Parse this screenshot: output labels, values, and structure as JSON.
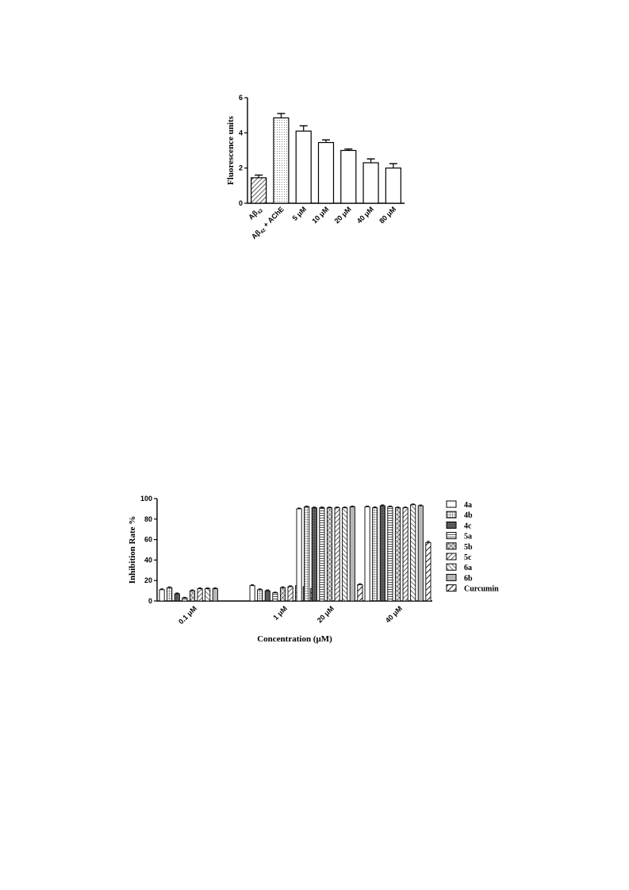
{
  "chart_data": [
    {
      "type": "bar",
      "title": "",
      "ylabel": "Fluorescence units",
      "xlabel": "",
      "ylim": [
        0,
        6
      ],
      "yticks": [
        "0",
        "2",
        "4",
        "6"
      ],
      "categories": [
        "Aβ42",
        "Aβ42 + AChE",
        "5 μM",
        "10 μM",
        "20 μM",
        "40 μM",
        "80 μM"
      ],
      "category_parts": [
        {
          "base": "Aβ",
          "sub": "42",
          "rest": ""
        },
        {
          "base": "Aβ",
          "sub": "42",
          "rest": " + AChE"
        },
        {
          "base": "5 μM",
          "sub": "",
          "rest": ""
        },
        {
          "base": "10 μM",
          "sub": "",
          "rest": ""
        },
        {
          "base": "20 μM",
          "sub": "",
          "rest": ""
        },
        {
          "base": "40 μM",
          "sub": "",
          "rest": ""
        },
        {
          "base": "80 μM",
          "sub": "",
          "rest": ""
        }
      ],
      "values": [
        1.45,
        4.85,
        4.1,
        3.45,
        3.0,
        2.3,
        2.0
      ],
      "errors": [
        0.15,
        0.25,
        0.3,
        0.15,
        0.08,
        0.22,
        0.25
      ],
      "patterns": [
        "diagonal",
        "dots",
        "none",
        "none",
        "none",
        "none",
        "none"
      ],
      "grid": false
    },
    {
      "type": "bar",
      "title": "",
      "ylabel": "Inhibition Rate %",
      "xlabel": "Concentration (μM)",
      "ylim": [
        0,
        100
      ],
      "yticks": [
        "0",
        "20",
        "40",
        "60",
        "80",
        "100"
      ],
      "categories": [
        "0.1 μM",
        "1 μM",
        "20 μM",
        "40 μM"
      ],
      "legend_position": "right",
      "series": [
        {
          "name": "4a",
          "pattern": "none",
          "values": [
            11,
            15,
            90,
            92
          ],
          "errors": [
            0.8,
            0.8,
            0.7,
            0.7
          ]
        },
        {
          "name": "4b",
          "pattern": "grid",
          "values": [
            13,
            11,
            92,
            91
          ],
          "errors": [
            0.8,
            0.8,
            0.7,
            0.8
          ]
        },
        {
          "name": "4c",
          "pattern": "dense",
          "values": [
            7,
            10,
            91,
            93
          ],
          "errors": [
            0.8,
            0.8,
            0.7,
            0.8
          ]
        },
        {
          "name": "5a",
          "pattern": "hlines",
          "values": [
            3,
            8,
            91,
            92
          ],
          "errors": [
            0.6,
            0.6,
            0.7,
            0.7
          ]
        },
        {
          "name": "5b",
          "pattern": "crosshatch",
          "values": [
            10,
            13,
            91,
            91
          ],
          "errors": [
            0.8,
            0.8,
            0.7,
            0.7
          ]
        },
        {
          "name": "5c",
          "pattern": "diagonal",
          "values": [
            12,
            14,
            91,
            91
          ],
          "errors": [
            0.8,
            0.8,
            0.7,
            0.7
          ]
        },
        {
          "name": "6a",
          "pattern": "backdiag",
          "values": [
            12,
            15,
            91,
            94
          ],
          "errors": [
            0.8,
            0.8,
            0.7,
            0.7
          ]
        },
        {
          "name": "6b",
          "pattern": "fineh",
          "values": [
            12,
            14,
            92,
            93
          ],
          "errors": [
            0.8,
            0.8,
            0.7,
            0.7
          ]
        },
        {
          "name": "Curcumin",
          "pattern": "wide",
          "values": [
            0,
            12,
            16,
            57
          ],
          "errors": [
            0,
            0.8,
            0.8,
            1.2
          ]
        }
      ],
      "grid": false
    }
  ]
}
